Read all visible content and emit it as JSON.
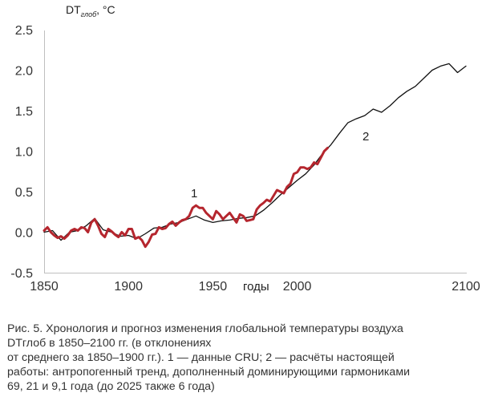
{
  "chart_data": {
    "type": "line",
    "ylabel": "DTглоб, °С",
    "ylabel_main": "DT",
    "ylabel_sub": "глоб",
    "ylabel_unit": ", °С",
    "xlabel": "годы",
    "xlim": [
      1850,
      2100
    ],
    "ylim": [
      -0.5,
      2.5
    ],
    "x_ticks": [
      "1850",
      "1900",
      "1950",
      "2000",
      "2100"
    ],
    "x_tick_values": [
      1850,
      1900,
      1950,
      2000,
      2100
    ],
    "y_ticks": [
      "2.5",
      "2.0",
      "1.5",
      "1.0",
      "0.5",
      "0.0",
      "-0.5"
    ],
    "y_tick_values": [
      2.5,
      2.0,
      1.5,
      1.0,
      0.5,
      0.0,
      -0.5
    ],
    "grid": false,
    "colors": {
      "observed": "#b5262e",
      "model": "#111111",
      "axis": "#bfbfbf"
    },
    "series": [
      {
        "name": "1",
        "color": "#b5262e",
        "x": [
          1850,
          1852,
          1854,
          1856,
          1858,
          1860,
          1862,
          1864,
          1866,
          1868,
          1870,
          1872,
          1874,
          1876,
          1878,
          1880,
          1882,
          1884,
          1886,
          1888,
          1890,
          1892,
          1894,
          1896,
          1898,
          1900,
          1902,
          1904,
          1906,
          1908,
          1910,
          1912,
          1914,
          1916,
          1918,
          1920,
          1922,
          1924,
          1926,
          1928,
          1930,
          1932,
          1934,
          1936,
          1938,
          1940,
          1942,
          1944,
          1946,
          1948,
          1950,
          1952,
          1954,
          1956,
          1958,
          1960,
          1962,
          1964,
          1966,
          1968,
          1970,
          1972,
          1974,
          1976,
          1978,
          1980,
          1982,
          1984,
          1986,
          1988,
          1990,
          1992,
          1994,
          1996,
          1998,
          2000,
          2002,
          2004,
          2006,
          2008,
          2010,
          2012,
          2014,
          2016,
          2018
        ],
        "y": [
          0.02,
          0.06,
          0.0,
          -0.04,
          -0.07,
          -0.05,
          -0.08,
          -0.04,
          0.02,
          0.04,
          0.02,
          0.06,
          0.05,
          0.0,
          0.12,
          0.16,
          0.08,
          -0.02,
          -0.06,
          0.04,
          0.01,
          -0.03,
          -0.06,
          0.0,
          -0.04,
          0.04,
          0.04,
          -0.08,
          -0.06,
          -0.1,
          -0.18,
          -0.12,
          -0.03,
          -0.02,
          0.06,
          0.04,
          0.05,
          0.1,
          0.13,
          0.08,
          0.12,
          0.15,
          0.16,
          0.2,
          0.3,
          0.33,
          0.3,
          0.3,
          0.24,
          0.2,
          0.16,
          0.26,
          0.22,
          0.16,
          0.2,
          0.24,
          0.18,
          0.12,
          0.22,
          0.2,
          0.14,
          0.15,
          0.16,
          0.28,
          0.33,
          0.36,
          0.4,
          0.38,
          0.45,
          0.52,
          0.5,
          0.48,
          0.56,
          0.6,
          0.72,
          0.74,
          0.8,
          0.8,
          0.78,
          0.8,
          0.86,
          0.84,
          0.92,
          1.0,
          1.04
        ]
      },
      {
        "name": "2",
        "color": "#111111",
        "x": [
          1850,
          1855,
          1860,
          1865,
          1870,
          1875,
          1880,
          1885,
          1890,
          1895,
          1900,
          1905,
          1910,
          1915,
          1920,
          1925,
          1930,
          1935,
          1940,
          1945,
          1950,
          1955,
          1960,
          1965,
          1970,
          1975,
          1980,
          1985,
          1990,
          1995,
          2000,
          2005,
          2010,
          2015,
          2020,
          2025,
          2030,
          2035,
          2040,
          2045,
          2050,
          2055,
          2060,
          2065,
          2070,
          2075,
          2080,
          2085,
          2090,
          2095,
          2100
        ],
        "y": [
          0.0,
          0.02,
          -0.1,
          0.0,
          0.02,
          0.08,
          0.17,
          0.03,
          0.0,
          -0.05,
          -0.04,
          -0.08,
          -0.02,
          0.05,
          0.06,
          0.1,
          0.12,
          0.16,
          0.2,
          0.15,
          0.12,
          0.14,
          0.15,
          0.17,
          0.18,
          0.2,
          0.27,
          0.36,
          0.46,
          0.55,
          0.64,
          0.72,
          0.83,
          0.97,
          1.08,
          1.22,
          1.35,
          1.4,
          1.44,
          1.52,
          1.48,
          1.56,
          1.66,
          1.74,
          1.8,
          1.9,
          2.0,
          2.05,
          2.08,
          1.97,
          2.05
        ]
      }
    ]
  },
  "caption": {
    "line1": "Рис. 5. Хронология и прогноз изменения глобальной температуры воздуха",
    "line2": "DTглоб в 1850–2100 гг. (в отклонениях",
    "line3": "от среднего за 1850–1900 гг.). 1 — данные CRU; 2 — расчёты настоящей",
    "line4": "работы: антропогенный тренд, дополненный доминирующими гармониками",
    "line5": "69, 21 и 9,1 года (до 2025 также 6 года)"
  }
}
